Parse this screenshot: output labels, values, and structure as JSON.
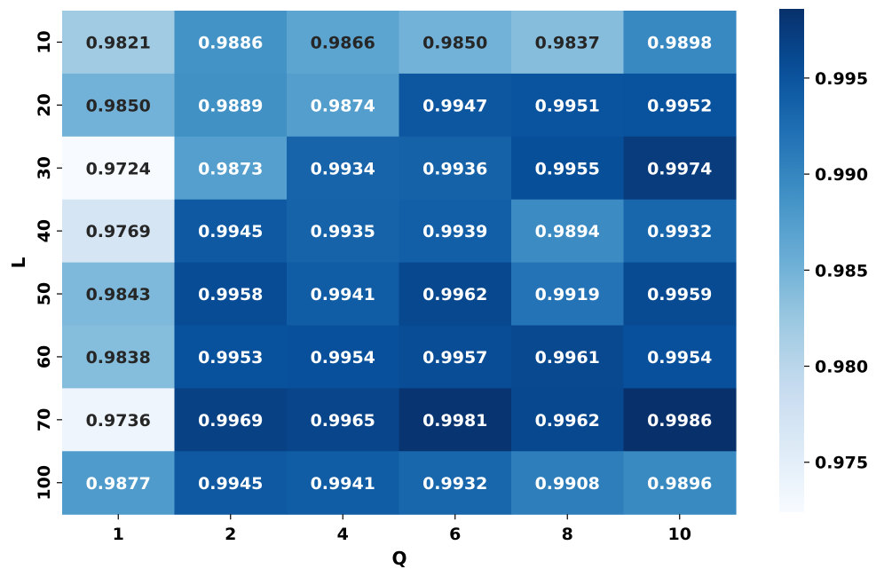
{
  "chart_data": {
    "type": "heatmap",
    "xlabel": "Q",
    "ylabel": "L",
    "x_categories": [
      "1",
      "2",
      "4",
      "6",
      "8",
      "10"
    ],
    "y_categories": [
      "10",
      "20",
      "30",
      "40",
      "50",
      "60",
      "70",
      "100"
    ],
    "values": [
      [
        "0.9821",
        "0.9886",
        "0.9866",
        "0.9850",
        "0.9837",
        "0.9898"
      ],
      [
        "0.9850",
        "0.9889",
        "0.9874",
        "0.9947",
        "0.9951",
        "0.9952"
      ],
      [
        "0.9724",
        "0.9873",
        "0.9934",
        "0.9936",
        "0.9955",
        "0.9974"
      ],
      [
        "0.9769",
        "0.9945",
        "0.9935",
        "0.9939",
        "0.9894",
        "0.9932"
      ],
      [
        "0.9843",
        "0.9958",
        "0.9941",
        "0.9962",
        "0.9919",
        "0.9959"
      ],
      [
        "0.9838",
        "0.9953",
        "0.9954",
        "0.9957",
        "0.9961",
        "0.9954"
      ],
      [
        "0.9736",
        "0.9969",
        "0.9965",
        "0.9981",
        "0.9962",
        "0.9986"
      ],
      [
        "0.9877",
        "0.9945",
        "0.9941",
        "0.9932",
        "0.9908",
        "0.9896"
      ]
    ],
    "colormap": "Blues",
    "color_range": [
      0.9724,
      0.9986
    ],
    "colorbar_ticks": [
      "0.975",
      "0.980",
      "0.985",
      "0.990",
      "0.995"
    ],
    "annotation_colors": {
      "on_light": "#262626",
      "on_dark": "#ffffff"
    }
  }
}
